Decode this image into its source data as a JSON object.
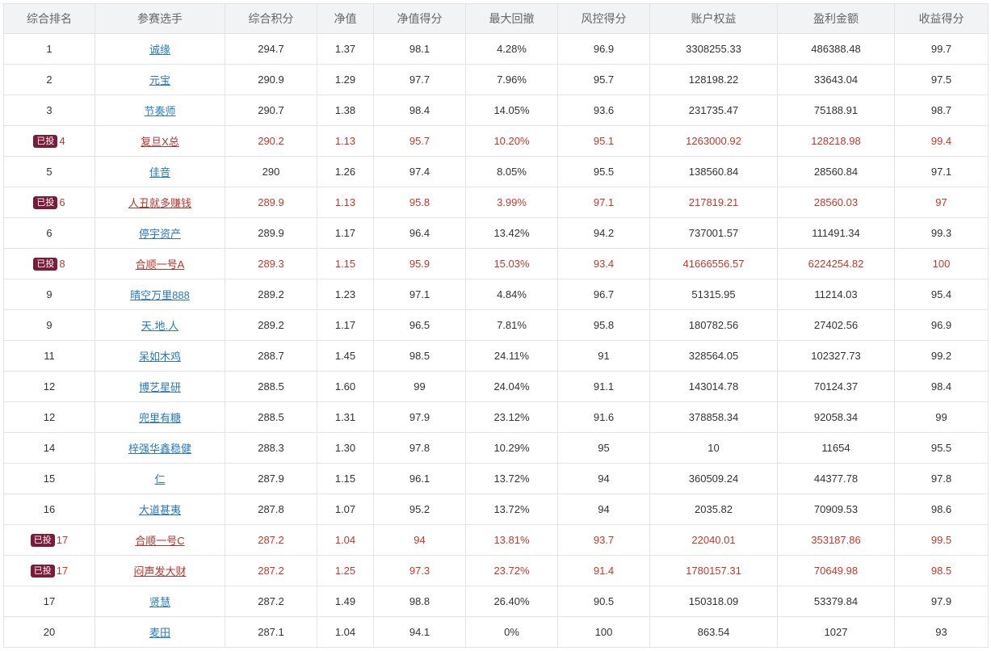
{
  "table": {
    "headers": [
      "综合排名",
      "参赛选手",
      "综合积分",
      "净值",
      "净值得分",
      "最大回撤",
      "风控得分",
      "账户权益",
      "盈利金额",
      "收益得分"
    ],
    "badge_label": "已投",
    "colors": {
      "invested_text": "#c0392b",
      "badge_bg": "#7a1b3a",
      "link": "#2a78b8"
    },
    "rows": [
      {
        "rank": "1",
        "invested": false,
        "player": "诚缘",
        "score": "294.7",
        "nav": "1.37",
        "nav_score": "98.1",
        "max_dd": "4.28%",
        "risk_score": "96.9",
        "equity": "3308255.33",
        "profit": "486388.48",
        "return_score": "99.7"
      },
      {
        "rank": "2",
        "invested": false,
        "player": "元宝",
        "score": "290.9",
        "nav": "1.29",
        "nav_score": "97.7",
        "max_dd": "7.96%",
        "risk_score": "95.7",
        "equity": "128198.22",
        "profit": "33643.04",
        "return_score": "97.5"
      },
      {
        "rank": "3",
        "invested": false,
        "player": "节奏师",
        "score": "290.7",
        "nav": "1.38",
        "nav_score": "98.4",
        "max_dd": "14.05%",
        "risk_score": "93.6",
        "equity": "231735.47",
        "profit": "75188.91",
        "return_score": "98.7"
      },
      {
        "rank": "4",
        "invested": true,
        "player": "复旦X总",
        "score": "290.2",
        "nav": "1.13",
        "nav_score": "95.7",
        "max_dd": "10.20%",
        "risk_score": "95.1",
        "equity": "1263000.92",
        "profit": "128218.98",
        "return_score": "99.4"
      },
      {
        "rank": "5",
        "invested": false,
        "player": "佳音",
        "score": "290",
        "nav": "1.26",
        "nav_score": "97.4",
        "max_dd": "8.05%",
        "risk_score": "95.5",
        "equity": "138560.84",
        "profit": "28560.84",
        "return_score": "97.1"
      },
      {
        "rank": "6",
        "invested": true,
        "player": "人丑就多赚钱",
        "score": "289.9",
        "nav": "1.13",
        "nav_score": "95.8",
        "max_dd": "3.99%",
        "risk_score": "97.1",
        "equity": "217819.21",
        "profit": "28560.03",
        "return_score": "97"
      },
      {
        "rank": "6",
        "invested": false,
        "player": "停宇资产",
        "score": "289.9",
        "nav": "1.17",
        "nav_score": "96.4",
        "max_dd": "13.42%",
        "risk_score": "94.2",
        "equity": "737001.57",
        "profit": "111491.34",
        "return_score": "99.3"
      },
      {
        "rank": "8",
        "invested": true,
        "player": "合顺一号A",
        "score": "289.3",
        "nav": "1.15",
        "nav_score": "95.9",
        "max_dd": "15.03%",
        "risk_score": "93.4",
        "equity": "41666556.57",
        "profit": "6224254.82",
        "return_score": "100"
      },
      {
        "rank": "9",
        "invested": false,
        "player": "晴空万里888",
        "score": "289.2",
        "nav": "1.23",
        "nav_score": "97.1",
        "max_dd": "4.84%",
        "risk_score": "96.7",
        "equity": "51315.95",
        "profit": "11214.03",
        "return_score": "95.4"
      },
      {
        "rank": "9",
        "invested": false,
        "player": "天.地.人",
        "score": "289.2",
        "nav": "1.17",
        "nav_score": "96.5",
        "max_dd": "7.81%",
        "risk_score": "95.8",
        "equity": "180782.56",
        "profit": "27402.56",
        "return_score": "96.9"
      },
      {
        "rank": "11",
        "invested": false,
        "player": "呆如木鸡",
        "score": "288.7",
        "nav": "1.45",
        "nav_score": "98.5",
        "max_dd": "24.11%",
        "risk_score": "91",
        "equity": "328564.05",
        "profit": "102327.73",
        "return_score": "99.2"
      },
      {
        "rank": "12",
        "invested": false,
        "player": "博艺星研",
        "score": "288.5",
        "nav": "1.60",
        "nav_score": "99",
        "max_dd": "24.04%",
        "risk_score": "91.1",
        "equity": "143014.78",
        "profit": "70124.37",
        "return_score": "98.4"
      },
      {
        "rank": "12",
        "invested": false,
        "player": "兜里有糖",
        "score": "288.5",
        "nav": "1.31",
        "nav_score": "97.9",
        "max_dd": "23.12%",
        "risk_score": "91.6",
        "equity": "378858.34",
        "profit": "92058.34",
        "return_score": "99"
      },
      {
        "rank": "14",
        "invested": false,
        "player": "梓强华鑫稳健",
        "score": "288.3",
        "nav": "1.30",
        "nav_score": "97.8",
        "max_dd": "10.29%",
        "risk_score": "95",
        "equity": "10",
        "profit": "11654",
        "return_score": "95.5"
      },
      {
        "rank": "15",
        "invested": false,
        "player": "仁",
        "score": "287.9",
        "nav": "1.15",
        "nav_score": "96.1",
        "max_dd": "13.72%",
        "risk_score": "94",
        "equity": "360509.24",
        "profit": "44377.78",
        "return_score": "97.8"
      },
      {
        "rank": "16",
        "invested": false,
        "player": "大道甚夷",
        "score": "287.8",
        "nav": "1.07",
        "nav_score": "95.2",
        "max_dd": "13.72%",
        "risk_score": "94",
        "equity": "2035.82",
        "profit": "70909.53",
        "return_score": "98.6"
      },
      {
        "rank": "17",
        "invested": true,
        "player": "合顺一号C",
        "score": "287.2",
        "nav": "1.04",
        "nav_score": "94",
        "max_dd": "13.81%",
        "risk_score": "93.7",
        "equity": "22040.01",
        "profit": "353187.86",
        "return_score": "99.5"
      },
      {
        "rank": "17",
        "invested": true,
        "player": "闷声发大财",
        "score": "287.2",
        "nav": "1.25",
        "nav_score": "97.3",
        "max_dd": "23.72%",
        "risk_score": "91.4",
        "equity": "1780157.31",
        "profit": "70649.98",
        "return_score": "98.5"
      },
      {
        "rank": "17",
        "invested": false,
        "player": "贤慧",
        "score": "287.2",
        "nav": "1.49",
        "nav_score": "98.8",
        "max_dd": "26.40%",
        "risk_score": "90.5",
        "equity": "150318.09",
        "profit": "53379.84",
        "return_score": "97.9"
      },
      {
        "rank": "20",
        "invested": false,
        "player": "麦田",
        "score": "287.1",
        "nav": "1.04",
        "nav_score": "94.1",
        "max_dd": "0%",
        "risk_score": "100",
        "equity": "863.54",
        "profit": "1027",
        "return_score": "93"
      }
    ]
  }
}
